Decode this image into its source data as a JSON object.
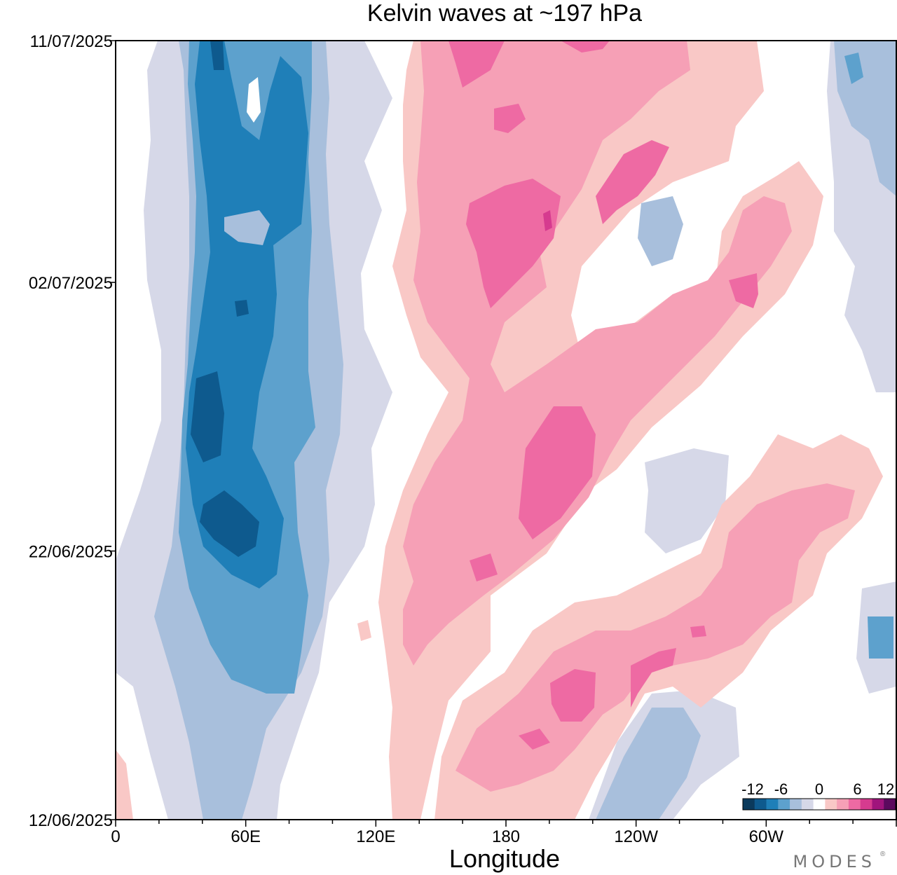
{
  "chart_data": {
    "type": "heatmap",
    "title": "Kelvin waves at ~197 hPa",
    "xlabel": "Longitude",
    "ylabel": "",
    "x_ticks": [
      {
        "lon": 0,
        "label": "0"
      },
      {
        "lon": 60,
        "label": "60E"
      },
      {
        "lon": 120,
        "label": "120E"
      },
      {
        "lon": 180,
        "label": "180"
      },
      {
        "lon": 240,
        "label": "120W"
      },
      {
        "lon": 300,
        "label": "60W"
      }
    ],
    "xlim": [
      0,
      360
    ],
    "y_ticks": [
      {
        "day": 0,
        "label": "12/06/2025"
      },
      {
        "day": 10,
        "label": "22/06/2025"
      },
      {
        "day": 20,
        "label": "02/07/2025"
      },
      {
        "day": 29,
        "label": "11/07/2025"
      }
    ],
    "ylim_days": [
      0,
      29
    ],
    "ylabel_note": "",
    "colorbar": {
      "labels": [
        "-12",
        "-6",
        "0",
        "6",
        "12"
      ],
      "levels": [
        -12,
        -10,
        -8,
        -6,
        -4,
        -2,
        0,
        2,
        4,
        6,
        8,
        10,
        12
      ],
      "colors": [
        "#0b3a5c",
        "#0e5a8e",
        "#1f7fb8",
        "#5da1cd",
        "#a8bfdc",
        "#d6d8e8",
        "#ffffff",
        "#f9c8c6",
        "#f6a0b6",
        "#ee6aa3",
        "#d63b8f",
        "#a0147c",
        "#5c0a5e"
      ]
    },
    "field_features": [
      {
        "sign": "negative",
        "peak": -11,
        "lon_center": 45,
        "lon_span": [
          30,
          85
        ],
        "days": [
          0,
          29
        ],
        "note": "stationary blue band over Indian Ocean"
      },
      {
        "sign": "positive",
        "peak": 11,
        "lon_from": 140,
        "lon_to": 250,
        "days": [
          5,
          29
        ],
        "note": "eastward propagating pink band"
      },
      {
        "sign": "positive",
        "peak": 9,
        "lon_from": 190,
        "lon_to": 360,
        "days": [
          2,
          14
        ],
        "note": "second eastward propagating pink band"
      },
      {
        "sign": "negative",
        "peak": -6,
        "lon_center": 345,
        "days": [
          22,
          29
        ]
      }
    ]
  },
  "brand": "MODES"
}
